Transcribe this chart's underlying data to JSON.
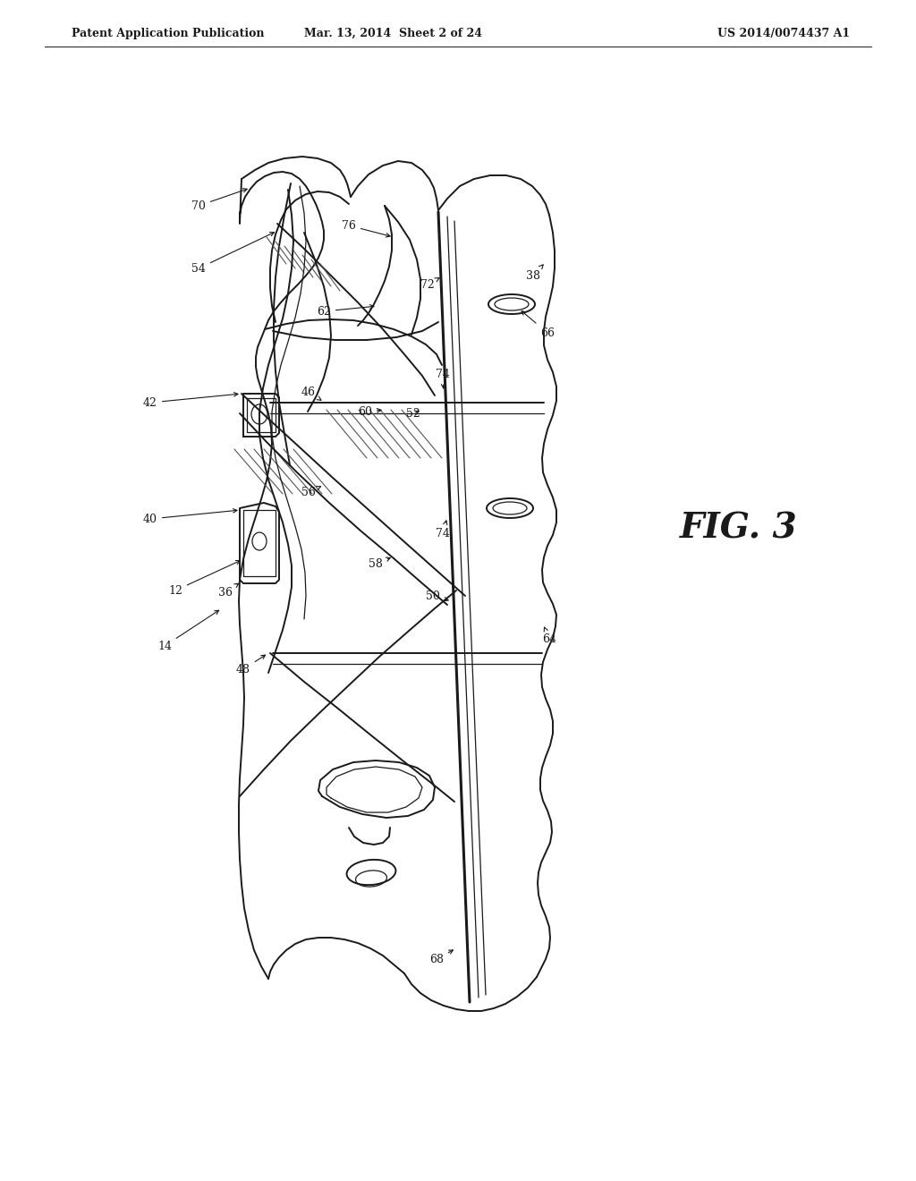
{
  "bg_color": "#ffffff",
  "line_color": "#1a1a1a",
  "header_left": "Patent Application Publication",
  "header_center": "Mar. 13, 2014  Sheet 2 of 24",
  "header_right": "US 2014/0074437 A1",
  "fig_label": "FIG. 3"
}
